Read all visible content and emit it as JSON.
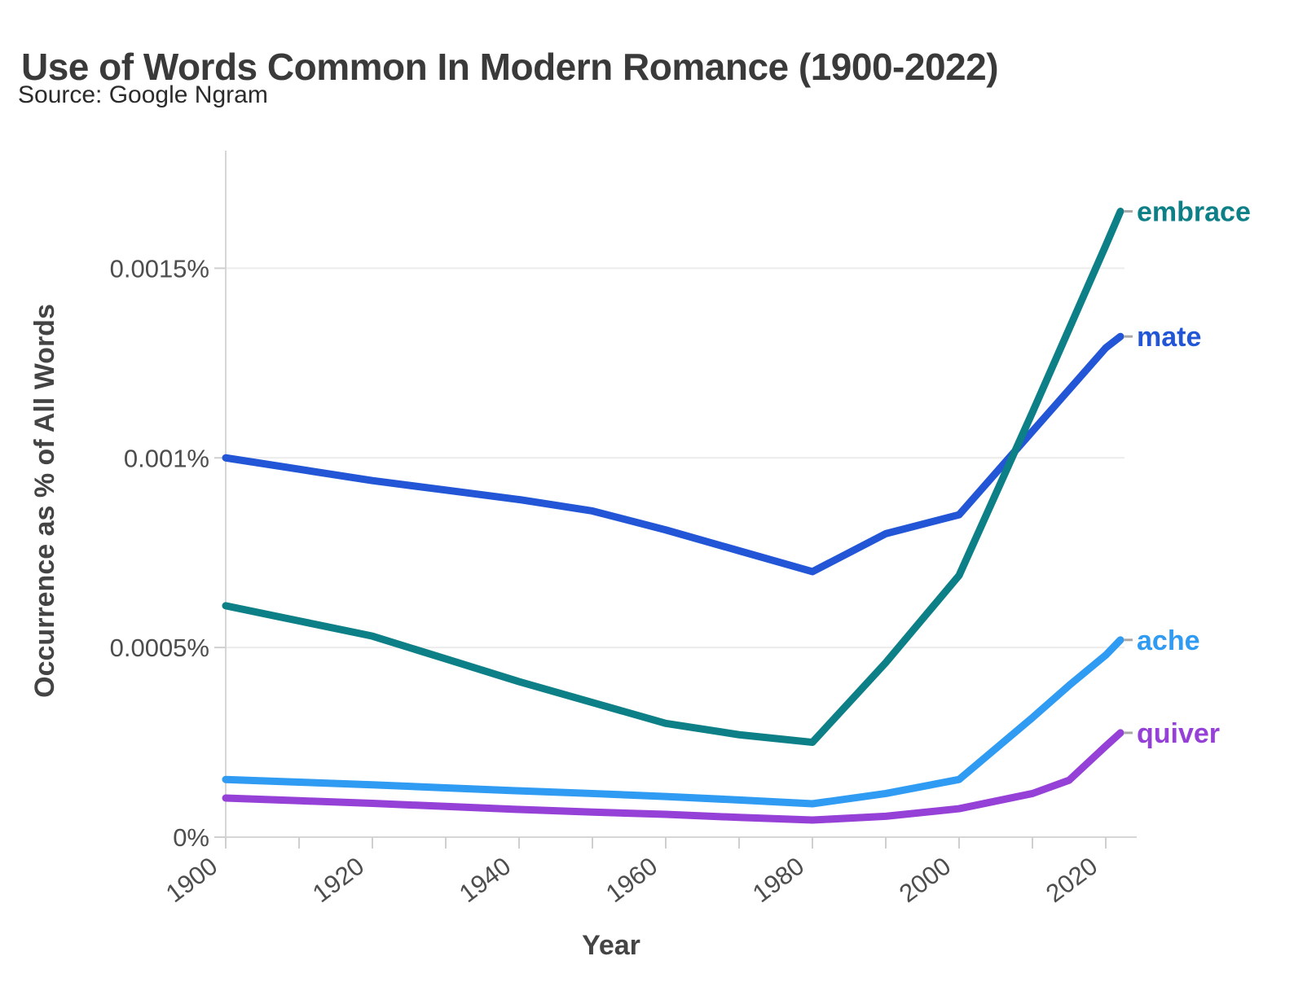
{
  "header": {
    "title": "Use of Words Common In Modern Romance (1900-2022)",
    "source": "Source: Google Ngram"
  },
  "chart_data": {
    "type": "line",
    "title": "Use of Words Common In Modern Romance (1900-2022)",
    "subtitle": "Source: Google Ngram",
    "xlabel": "Year",
    "ylabel": "Occurrence as % of All Words",
    "xlim": [
      1900,
      2022
    ],
    "ylim": [
      0,
      0.00181
    ],
    "grid": "horizontal",
    "legend_position": "end-of-line",
    "x_ticks": [
      1900,
      1910,
      1920,
      1930,
      1940,
      1950,
      1960,
      1970,
      1980,
      1990,
      2000,
      2010,
      2020
    ],
    "x_labeled_ticks": [
      1900,
      1920,
      1940,
      1960,
      1980,
      2000,
      2020
    ],
    "y_ticks": [
      {
        "value": 0,
        "label": "0%"
      },
      {
        "value": 0.0005,
        "label": "0.0005%"
      },
      {
        "value": 0.001,
        "label": "0.001%"
      },
      {
        "value": 0.0015,
        "label": "0.0015%"
      }
    ],
    "x": [
      1900,
      1910,
      1920,
      1930,
      1940,
      1950,
      1960,
      1970,
      1980,
      1990,
      2000,
      2010,
      2015,
      2020,
      2022
    ],
    "series": [
      {
        "name": "mate",
        "color": "#2356d6",
        "values": [
          0.001,
          0.00097,
          0.00094,
          0.000915,
          0.00089,
          0.00086,
          0.00081,
          0.000755,
          0.0007,
          0.0008,
          0.00085,
          0.00107,
          0.00118,
          0.00129,
          0.00132
        ]
      },
      {
        "name": "ache",
        "color": "#2f9bf2",
        "values": [
          0.000152,
          0.000145,
          0.000138,
          0.00013,
          0.000122,
          0.000115,
          0.000107,
          9.8e-05,
          8.8e-05,
          0.000115,
          0.000152,
          0.000315,
          0.0004,
          0.00048,
          0.00052
        ]
      },
      {
        "name": "quiver",
        "color": "#9540d6",
        "values": [
          0.000103,
          9.6e-05,
          8.9e-05,
          8.1e-05,
          7.3e-05,
          6.6e-05,
          6e-05,
          5.2e-05,
          4.5e-05,
          5.5e-05,
          7.5e-05,
          0.000115,
          0.00015,
          0.00024,
          0.000275
        ]
      },
      {
        "name": "embrace",
        "color": "#0d7f87",
        "values": [
          0.00061,
          0.00057,
          0.00053,
          0.00047,
          0.00041,
          0.000355,
          0.0003,
          0.00027,
          0.00025,
          0.00046,
          0.00069,
          0.00112,
          0.00134,
          0.00156,
          0.00165
        ]
      }
    ]
  },
  "style_colors": {
    "grid": "#ececec",
    "axis": "#d6d6d6",
    "tick_mark": "#cfcfcf",
    "tick_text": "#4d4d4d",
    "axis_title_text": "#444444",
    "title_text": "#3a3a3a",
    "subtitle_text": "#2b2b2b"
  }
}
